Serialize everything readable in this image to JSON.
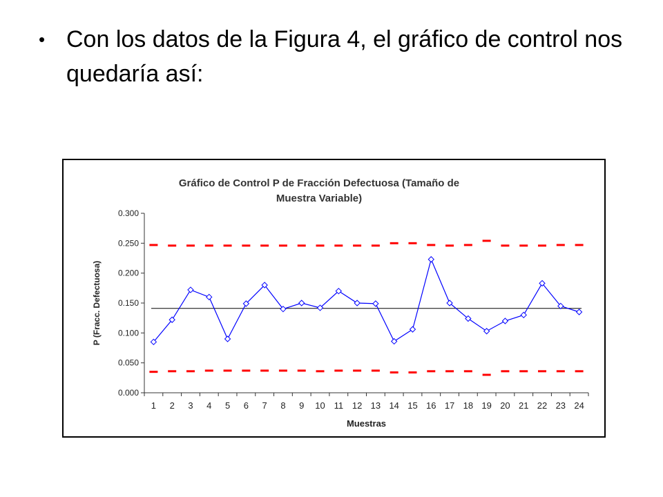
{
  "slide": {
    "bullet_glyph": "•",
    "bullet_text": "Con los datos de la Figura 4, el gráfico de control nos quedaría así:"
  },
  "chart_data": {
    "type": "line",
    "title_line1": "Gráfico de Control P de Fracción Defectuosa (Tamaño de",
    "title_line2": "Muestra Variable)",
    "xlabel": "Muestras",
    "ylabel": "P (Fracc. Defectuosa)",
    "ylim": [
      0,
      0.3
    ],
    "yticks": [
      "0.000",
      "0.050",
      "0.100",
      "0.150",
      "0.200",
      "0.250",
      "0.300"
    ],
    "x": [
      1,
      2,
      3,
      4,
      5,
      6,
      7,
      8,
      9,
      10,
      11,
      12,
      13,
      14,
      15,
      16,
      17,
      18,
      19,
      20,
      21,
      22,
      23,
      24
    ],
    "series": [
      {
        "values": [
          0.085,
          0.122,
          0.172,
          0.16,
          0.09,
          0.149,
          0.18,
          0.14,
          0.15,
          0.142,
          0.17,
          0.15,
          0.149,
          0.086,
          0.106,
          0.223,
          0.15,
          0.124,
          0.103,
          0.12,
          0.13,
          0.183,
          0.145,
          0.135
        ],
        "color": "#0000ff"
      },
      {
        "values": [
          0.247,
          0.246,
          0.246,
          0.246,
          0.246,
          0.246,
          0.246,
          0.246,
          0.246,
          0.246,
          0.246,
          0.246,
          0.246,
          0.25,
          0.25,
          0.247,
          0.246,
          0.247,
          0.254,
          0.246,
          0.246,
          0.246,
          0.247,
          0.247
        ],
        "color": "#ff0000"
      },
      {
        "values": [
          0.035,
          0.036,
          0.036,
          0.037,
          0.037,
          0.037,
          0.037,
          0.037,
          0.037,
          0.036,
          0.037,
          0.037,
          0.037,
          0.034,
          0.034,
          0.036,
          0.036,
          0.036,
          0.03,
          0.036,
          0.036,
          0.036,
          0.036,
          0.036
        ],
        "color": "#ff0000"
      }
    ],
    "center_line": 0.141,
    "center_color": "#000000",
    "grid": false,
    "legend": "none"
  }
}
